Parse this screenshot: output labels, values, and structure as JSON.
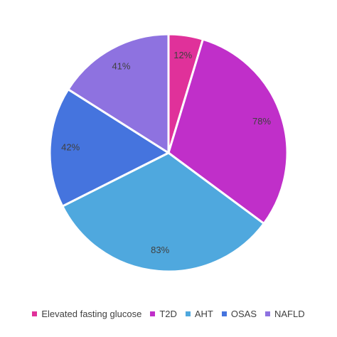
{
  "chart_data": {
    "type": "pie",
    "title": "",
    "categories": [
      "Elevated fasting glucose",
      "T2D",
      "AHT",
      "OSAS",
      "NAFLD"
    ],
    "values": [
      12,
      78,
      83,
      42,
      41
    ],
    "labels": [
      "12%",
      "78%",
      "83%",
      "42%",
      "41%"
    ],
    "colors": [
      "#E0319A",
      "#C02FC9",
      "#4FA8DE",
      "#4574DE",
      "#8E72E0"
    ],
    "legend_position": "bottom"
  }
}
